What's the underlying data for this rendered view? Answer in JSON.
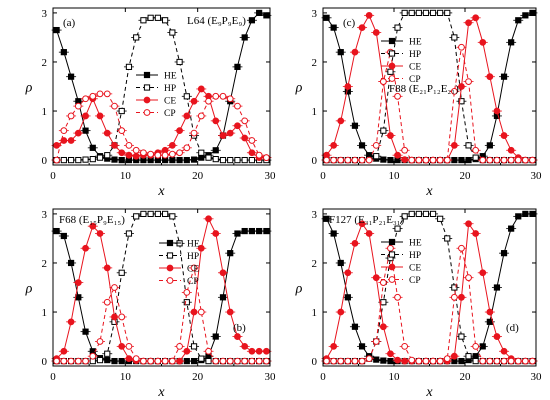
{
  "chart_data": [
    {
      "type": "line",
      "panel_letter": "(a)",
      "copolymer": "L64",
      "block_formula": "(E₉P₉E₉)",
      "legend_position": "center-right",
      "label_position": "top-right",
      "xlabel": "x",
      "ylabel": "ρ",
      "xlim": [
        0,
        30
      ],
      "ylim": [
        -0.1,
        3.1
      ],
      "xticks": [
        0,
        10,
        20,
        30
      ],
      "yticks": [
        0,
        1,
        2,
        3
      ],
      "x": [
        0.5,
        1.5,
        2.5,
        3.5,
        4.5,
        5.5,
        6.5,
        7.5,
        8.5,
        9.5,
        10.5,
        11.5,
        12.5,
        13.5,
        14.5,
        15.5,
        16.5,
        17.5,
        18.5,
        19.5,
        20.5,
        21.5,
        22.5,
        23.5,
        24.5,
        25.5,
        26.5,
        27.5,
        28.5,
        29.5
      ],
      "series": [
        {
          "name": "HE",
          "color": "#000000",
          "dash": false,
          "marker": "square-filled",
          "values": [
            2.65,
            2.2,
            1.7,
            1.2,
            0.6,
            0.25,
            0.08,
            0.03,
            0.01,
            0.0,
            0.0,
            0.0,
            0.0,
            0.0,
            0.0,
            0.0,
            0.0,
            0.0,
            0.0,
            0.01,
            0.05,
            0.1,
            0.2,
            0.5,
            1.2,
            1.9,
            2.5,
            2.85,
            3.0,
            2.95
          ]
        },
        {
          "name": "HP",
          "color": "#000000",
          "dash": true,
          "marker": "square-open",
          "values": [
            0.0,
            0.0,
            0.0,
            0.0,
            0.01,
            0.02,
            0.05,
            0.1,
            0.3,
            1.0,
            1.9,
            2.5,
            2.85,
            2.9,
            2.9,
            2.85,
            2.6,
            2.0,
            1.3,
            0.5,
            0.15,
            0.05,
            0.02,
            0.0,
            0.0,
            0.0,
            0.0,
            0.0,
            0.0,
            0.0
          ]
        },
        {
          "name": "CE",
          "color": "#e8141e",
          "dash": false,
          "marker": "circle-filled",
          "values": [
            0.3,
            0.4,
            0.4,
            0.55,
            0.9,
            1.25,
            0.9,
            0.55,
            0.3,
            0.15,
            0.1,
            0.08,
            0.1,
            0.1,
            0.15,
            0.2,
            0.3,
            0.6,
            0.9,
            1.2,
            1.45,
            1.3,
            0.8,
            0.5,
            0.55,
            0.7,
            0.45,
            0.15,
            0.05,
            0.05
          ]
        },
        {
          "name": "CP",
          "color": "#e8141e",
          "dash": true,
          "marker": "circle-open",
          "values": [
            0.0,
            0.6,
            0.9,
            1.1,
            1.25,
            1.3,
            1.35,
            1.35,
            1.1,
            0.6,
            0.3,
            0.2,
            0.15,
            0.12,
            0.1,
            0.1,
            0.12,
            0.15,
            0.25,
            0.55,
            0.9,
            1.2,
            1.3,
            1.3,
            1.25,
            1.1,
            0.8,
            0.4,
            0.1,
            0.05
          ]
        }
      ]
    },
    {
      "type": "line",
      "panel_letter": "(c)",
      "copolymer": "F88",
      "block_formula": "(E₂₁P₁₂E₂₁)",
      "legend_position": "top-center",
      "label_position": "center-right",
      "xlabel": "x",
      "ylabel": "ρ",
      "xlim": [
        0,
        30
      ],
      "ylim": [
        -0.1,
        3.1
      ],
      "xticks": [
        0,
        10,
        20,
        30
      ],
      "yticks": [
        0,
        1,
        2,
        3
      ],
      "x": [
        0.5,
        1.5,
        2.5,
        3.5,
        4.5,
        5.5,
        6.5,
        7.5,
        8.5,
        9.5,
        10.5,
        11.5,
        12.5,
        13.5,
        14.5,
        15.5,
        16.5,
        17.5,
        18.5,
        19.5,
        20.5,
        21.5,
        22.5,
        23.5,
        24.5,
        25.5,
        26.5,
        27.5,
        28.5,
        29.5
      ],
      "series": [
        {
          "name": "HE",
          "color": "#000000",
          "dash": false,
          "marker": "square-filled",
          "values": [
            2.9,
            2.7,
            2.2,
            1.4,
            0.7,
            0.3,
            0.1,
            0.03,
            0.01,
            0.0,
            0.0,
            0.0,
            0.0,
            0.0,
            0.0,
            0.0,
            0.0,
            0.0,
            0.0,
            0.0,
            0.0,
            0.02,
            0.08,
            0.3,
            0.9,
            1.7,
            2.4,
            2.85,
            2.95,
            3.0
          ]
        },
        {
          "name": "HP",
          "color": "#000000",
          "dash": true,
          "marker": "square-open",
          "values": [
            0.0,
            0.0,
            0.0,
            0.0,
            0.0,
            0.0,
            0.02,
            0.08,
            0.6,
            1.8,
            2.7,
            3.0,
            3.0,
            3.0,
            3.0,
            3.0,
            3.0,
            3.0,
            2.5,
            1.2,
            0.3,
            0.05,
            0.0,
            0.0,
            0.0,
            0.0,
            0.0,
            0.0,
            0.0,
            0.0
          ]
        },
        {
          "name": "CE",
          "color": "#e8141e",
          "dash": false,
          "marker": "circle-filled",
          "values": [
            0.1,
            0.3,
            0.8,
            1.5,
            2.2,
            2.7,
            2.95,
            2.6,
            1.6,
            0.5,
            0.1,
            0.01,
            0.0,
            0.0,
            0.0,
            0.0,
            0.0,
            0.0,
            0.3,
            1.5,
            2.8,
            2.9,
            2.4,
            1.7,
            1.0,
            0.5,
            0.2,
            0.05,
            0.0,
            0.0
          ]
        },
        {
          "name": "CP",
          "color": "#e8141e",
          "dash": true,
          "marker": "circle-open",
          "values": [
            0.0,
            0.0,
            0.0,
            0.0,
            0.0,
            0.0,
            0.0,
            0.3,
            1.6,
            2.2,
            1.3,
            0.2,
            0.0,
            0.0,
            0.0,
            0.0,
            0.0,
            0.0,
            1.4,
            2.3,
            1.6,
            0.2,
            0.0,
            0.0,
            0.0,
            0.0,
            0.0,
            0.0,
            0.0,
            0.0
          ]
        }
      ]
    },
    {
      "type": "line",
      "panel_letter": "(b)",
      "copolymer": "F68",
      "block_formula": "(E₁₅P₉E₁₅)",
      "legend_position": "top-right",
      "label_position": "top-left",
      "xlabel": "x",
      "ylabel": "ρ",
      "xlim": [
        0,
        30
      ],
      "ylim": [
        -0.1,
        3.1
      ],
      "xticks": [
        0,
        10,
        20,
        30
      ],
      "yticks": [
        0,
        1,
        2,
        3
      ],
      "x": [
        0.5,
        1.5,
        2.5,
        3.5,
        4.5,
        5.5,
        6.5,
        7.5,
        8.5,
        9.5,
        10.5,
        11.5,
        12.5,
        13.5,
        14.5,
        15.5,
        16.5,
        17.5,
        18.5,
        19.5,
        20.5,
        21.5,
        22.5,
        23.5,
        24.5,
        25.5,
        26.5,
        27.5,
        28.5,
        29.5
      ],
      "series": [
        {
          "name": "HE",
          "color": "#000000",
          "dash": false,
          "marker": "square-filled",
          "values": [
            2.65,
            2.55,
            2.0,
            1.3,
            0.6,
            0.2,
            0.06,
            0.02,
            0.0,
            0.0,
            0.0,
            0.0,
            0.0,
            0.0,
            0.0,
            0.0,
            0.0,
            0.0,
            0.0,
            0.0,
            0.02,
            0.1,
            0.5,
            1.3,
            2.2,
            2.6,
            2.65,
            2.65,
            2.65,
            2.65
          ]
        },
        {
          "name": "HP",
          "color": "#000000",
          "dash": true,
          "marker": "square-open",
          "values": [
            0.0,
            0.0,
            0.0,
            0.0,
            0.0,
            0.0,
            0.02,
            0.15,
            0.8,
            1.8,
            2.6,
            2.95,
            3.0,
            3.0,
            3.0,
            3.0,
            2.95,
            2.4,
            1.2,
            0.3,
            0.05,
            0.0,
            0.0,
            0.0,
            0.0,
            0.0,
            0.0,
            0.0,
            0.0,
            0.0
          ]
        },
        {
          "name": "CE",
          "color": "#e8141e",
          "dash": false,
          "marker": "circle-filled",
          "values": [
            0.05,
            0.2,
            0.8,
            1.6,
            2.3,
            2.75,
            2.6,
            1.9,
            0.9,
            0.3,
            0.05,
            0.01,
            0.0,
            0.0,
            0.0,
            0.0,
            0.0,
            0.0,
            0.2,
            1.0,
            2.3,
            2.9,
            2.6,
            1.8,
            1.0,
            0.5,
            0.3,
            0.2,
            0.2,
            0.2
          ]
        },
        {
          "name": "CP",
          "color": "#e8141e",
          "dash": true,
          "marker": "circle-open",
          "values": [
            0.0,
            0.0,
            0.0,
            0.0,
            0.0,
            0.1,
            0.4,
            1.2,
            1.5,
            0.9,
            0.3,
            0.05,
            0.0,
            0.0,
            0.0,
            0.0,
            0.0,
            0.3,
            1.4,
            1.9,
            1.0,
            0.2,
            0.0,
            0.0,
            0.0,
            0.0,
            0.0,
            0.0,
            0.0,
            0.0
          ]
        }
      ]
    },
    {
      "type": "line",
      "panel_letter": "(d)",
      "copolymer": "F127",
      "block_formula": "(E₃₁P₂₁E₃₁)",
      "legend_position": "top-center",
      "label_position": "top-left",
      "xlabel": "x",
      "ylabel": "ρ",
      "xlim": [
        0,
        30
      ],
      "ylim": [
        -0.1,
        3.1
      ],
      "xticks": [
        0,
        10,
        20,
        30
      ],
      "yticks": [
        0,
        1,
        2,
        3
      ],
      "x": [
        0.5,
        1.5,
        2.5,
        3.5,
        4.5,
        5.5,
        6.5,
        7.5,
        8.5,
        9.5,
        10.5,
        11.5,
        12.5,
        13.5,
        14.5,
        15.5,
        16.5,
        17.5,
        18.5,
        19.5,
        20.5,
        21.5,
        22.5,
        23.5,
        24.5,
        25.5,
        26.5,
        27.5,
        28.5,
        29.5
      ],
      "series": [
        {
          "name": "HE",
          "color": "#000000",
          "dash": false,
          "marker": "square-filled",
          "values": [
            2.9,
            2.6,
            2.0,
            1.3,
            0.7,
            0.3,
            0.1,
            0.03,
            0.01,
            0.0,
            0.0,
            0.0,
            0.0,
            0.0,
            0.0,
            0.0,
            0.0,
            0.0,
            0.0,
            0.0,
            0.02,
            0.1,
            0.3,
            0.8,
            1.5,
            2.2,
            2.7,
            2.95,
            3.0,
            3.0
          ]
        },
        {
          "name": "HP",
          "color": "#000000",
          "dash": true,
          "marker": "square-open",
          "values": [
            0.0,
            0.0,
            0.0,
            0.0,
            0.0,
            0.0,
            0.05,
            0.4,
            1.2,
            2.1,
            2.7,
            2.95,
            3.0,
            3.0,
            3.0,
            3.0,
            2.9,
            2.5,
            1.5,
            0.5,
            0.1,
            0.0,
            0.0,
            0.0,
            0.0,
            0.0,
            0.0,
            0.0,
            0.0,
            0.0
          ]
        },
        {
          "name": "CE",
          "color": "#e8141e",
          "dash": false,
          "marker": "circle-filled",
          "values": [
            0.05,
            0.3,
            1.0,
            1.8,
            2.4,
            2.8,
            2.6,
            1.7,
            0.7,
            0.15,
            0.02,
            0.0,
            0.0,
            0.0,
            0.0,
            0.0,
            0.0,
            0.0,
            0.1,
            1.3,
            2.8,
            2.6,
            1.8,
            1.0,
            0.5,
            0.2,
            0.05,
            0.0,
            0.0,
            0.0
          ]
        },
        {
          "name": "CP",
          "color": "#e8141e",
          "dash": true,
          "marker": "circle-open",
          "values": [
            0.0,
            0.0,
            0.0,
            0.0,
            0.0,
            0.0,
            0.05,
            0.4,
            1.6,
            2.3,
            1.3,
            0.3,
            0.02,
            0.0,
            0.0,
            0.0,
            0.0,
            0.05,
            1.3,
            2.3,
            1.7,
            0.3,
            0.0,
            0.0,
            0.0,
            0.0,
            0.0,
            0.0,
            0.0,
            0.0
          ]
        }
      ]
    }
  ]
}
